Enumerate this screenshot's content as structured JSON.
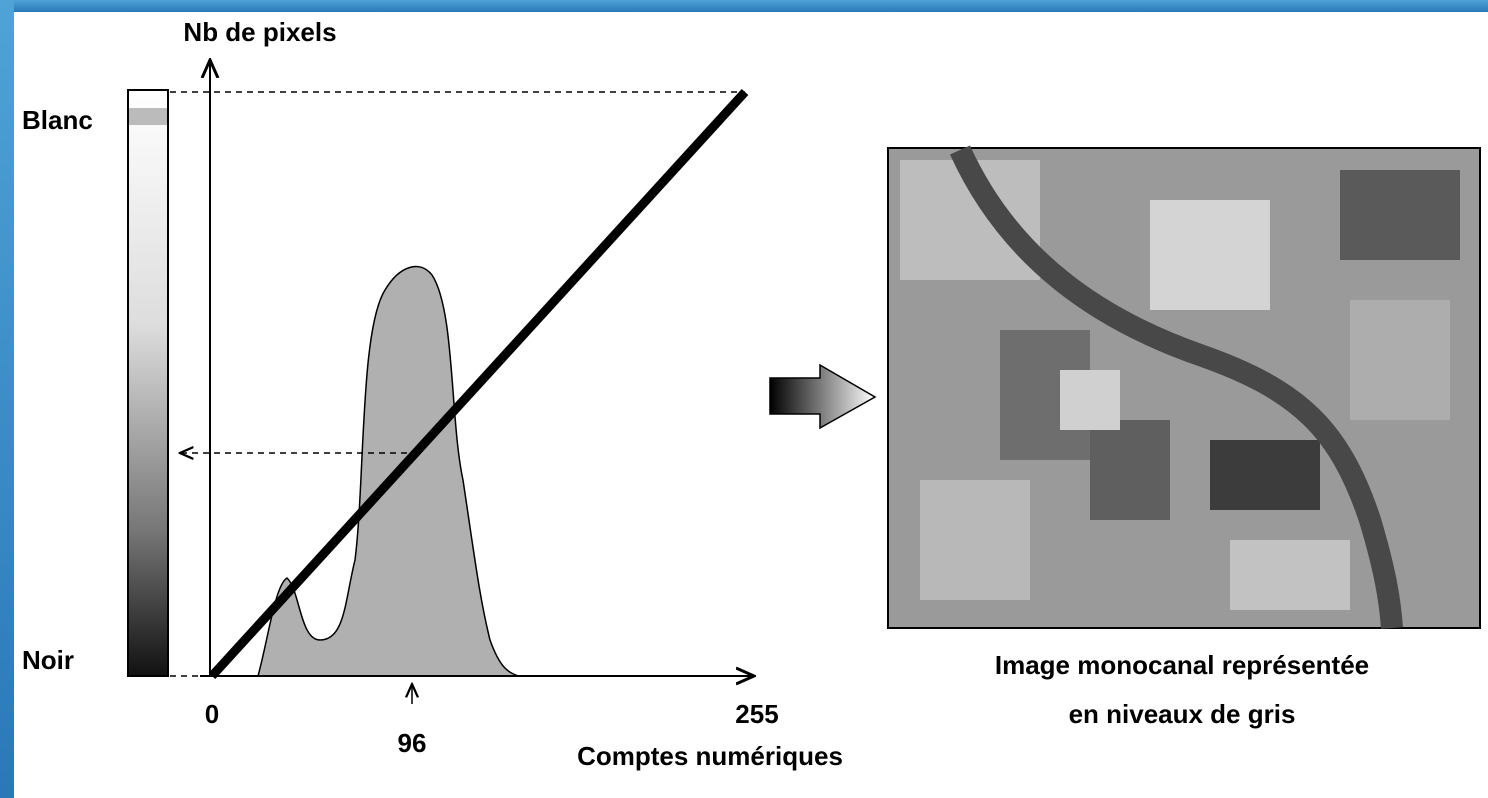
{
  "diagram": {
    "y_axis_label": "Nb de pixels",
    "x_axis_label": "Comptes numériques",
    "scale_top_label": "Blanc",
    "scale_bottom_label": "Noir",
    "x_ticks": [
      "0",
      "96",
      "255"
    ],
    "image_caption": [
      "Image monocanal représentée",
      "en niveaux de gris"
    ]
  }
}
